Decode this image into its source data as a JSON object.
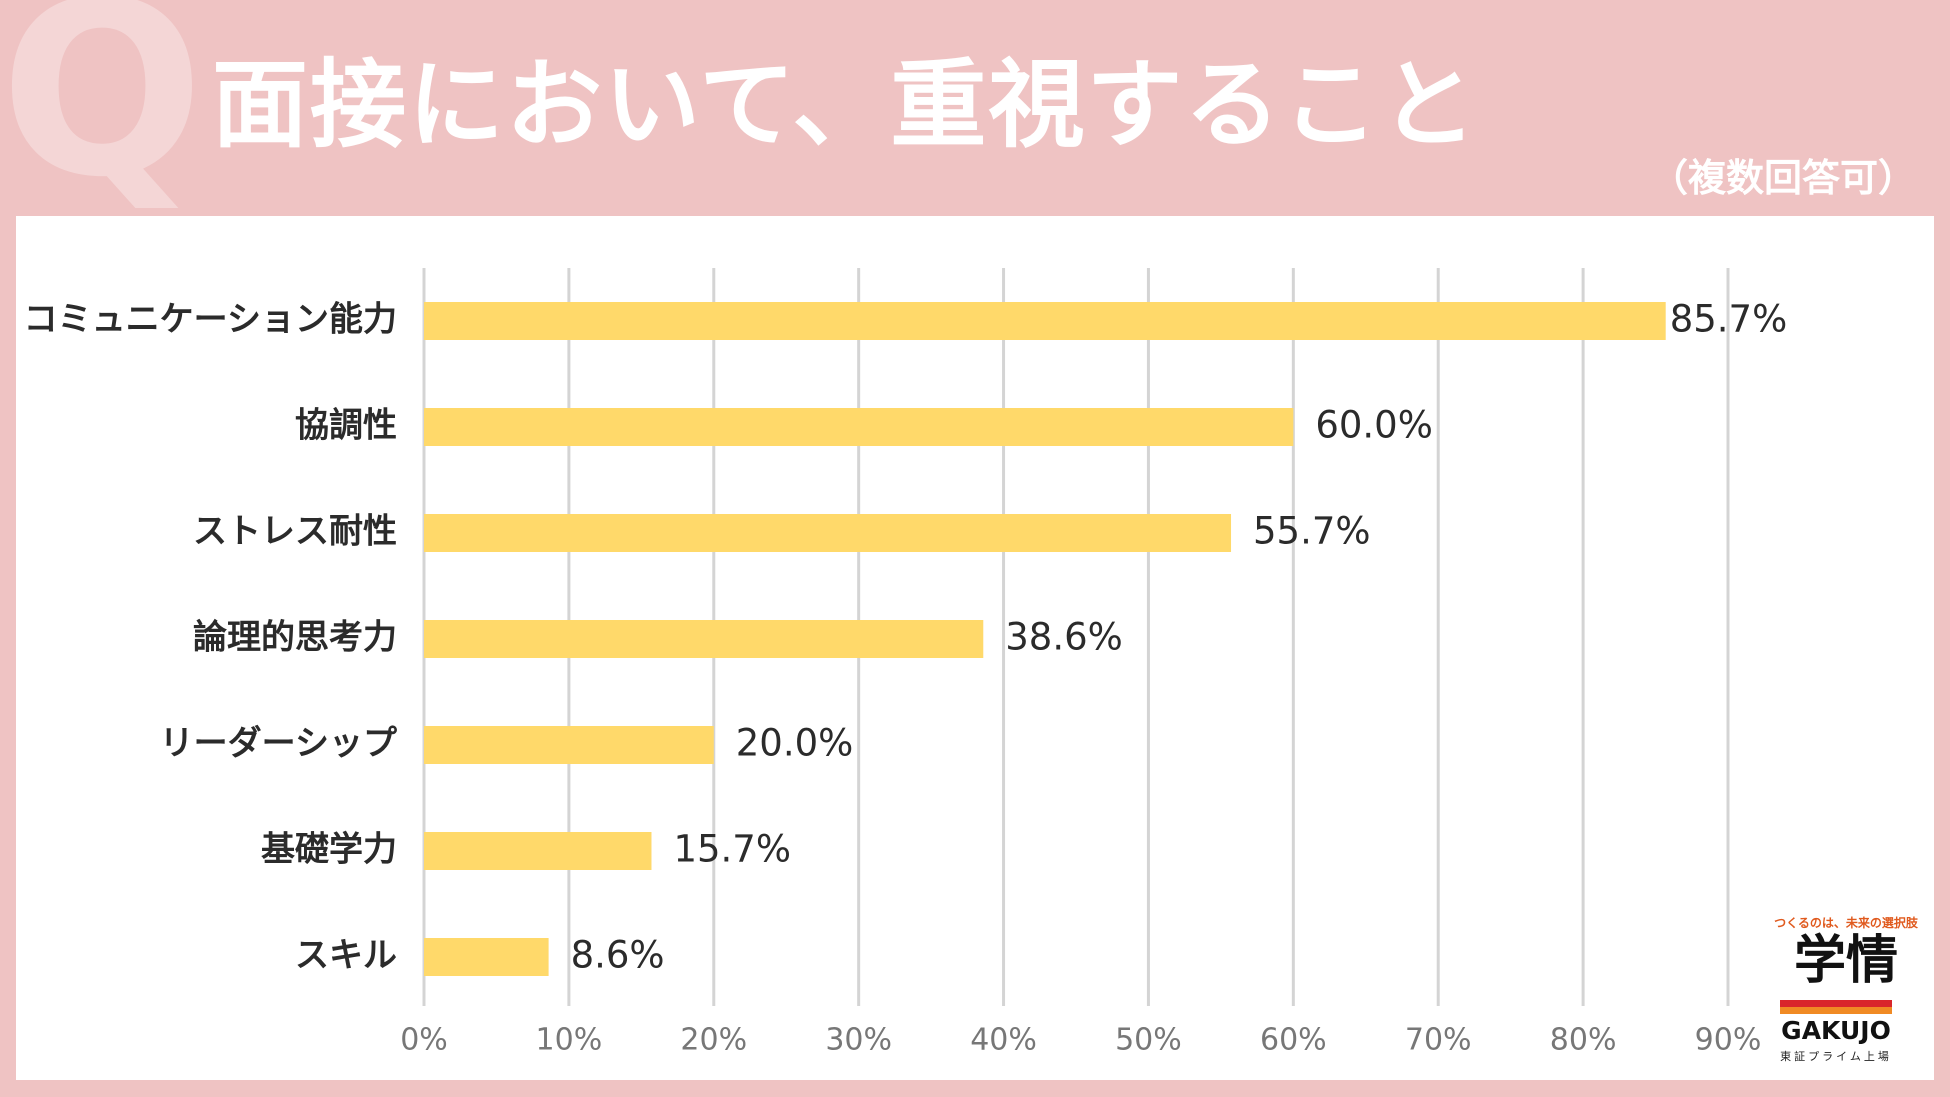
{
  "header": {
    "q_mark": "Q",
    "title": "面接において、重視すること",
    "note": "（複数回答可）"
  },
  "chart_data": {
    "type": "bar",
    "orientation": "horizontal",
    "categories": [
      "コミュニケーション能力",
      "協調性",
      "ストレス耐性",
      "論理的思考力",
      "リーダーシップ",
      "基礎学力",
      "スキル"
    ],
    "values": [
      85.7,
      60.0,
      55.7,
      38.6,
      20.0,
      15.7,
      8.6
    ],
    "value_labels": [
      "85.7%",
      "60.0%",
      "55.7%",
      "38.6%",
      "20.0%",
      "15.7%",
      "8.6%"
    ],
    "xlim": [
      0,
      90
    ],
    "xticks": [
      0,
      10,
      20,
      30,
      40,
      50,
      60,
      70,
      80,
      90
    ],
    "xtick_labels": [
      "0%",
      "10%",
      "20%",
      "30%",
      "40%",
      "50%",
      "60%",
      "70%",
      "80%",
      "90%"
    ],
    "grid": true,
    "bar_color": "#ffd96a",
    "grid_color": "#d4d4d4"
  },
  "logo": {
    "tagline": "つくるのは、未来の選択肢",
    "kanji": "学情",
    "english": "GAKUJO",
    "sub": "東証プライム上場",
    "colors": {
      "accent_red": "#d9262b",
      "accent_orange": "#f08a24"
    }
  }
}
